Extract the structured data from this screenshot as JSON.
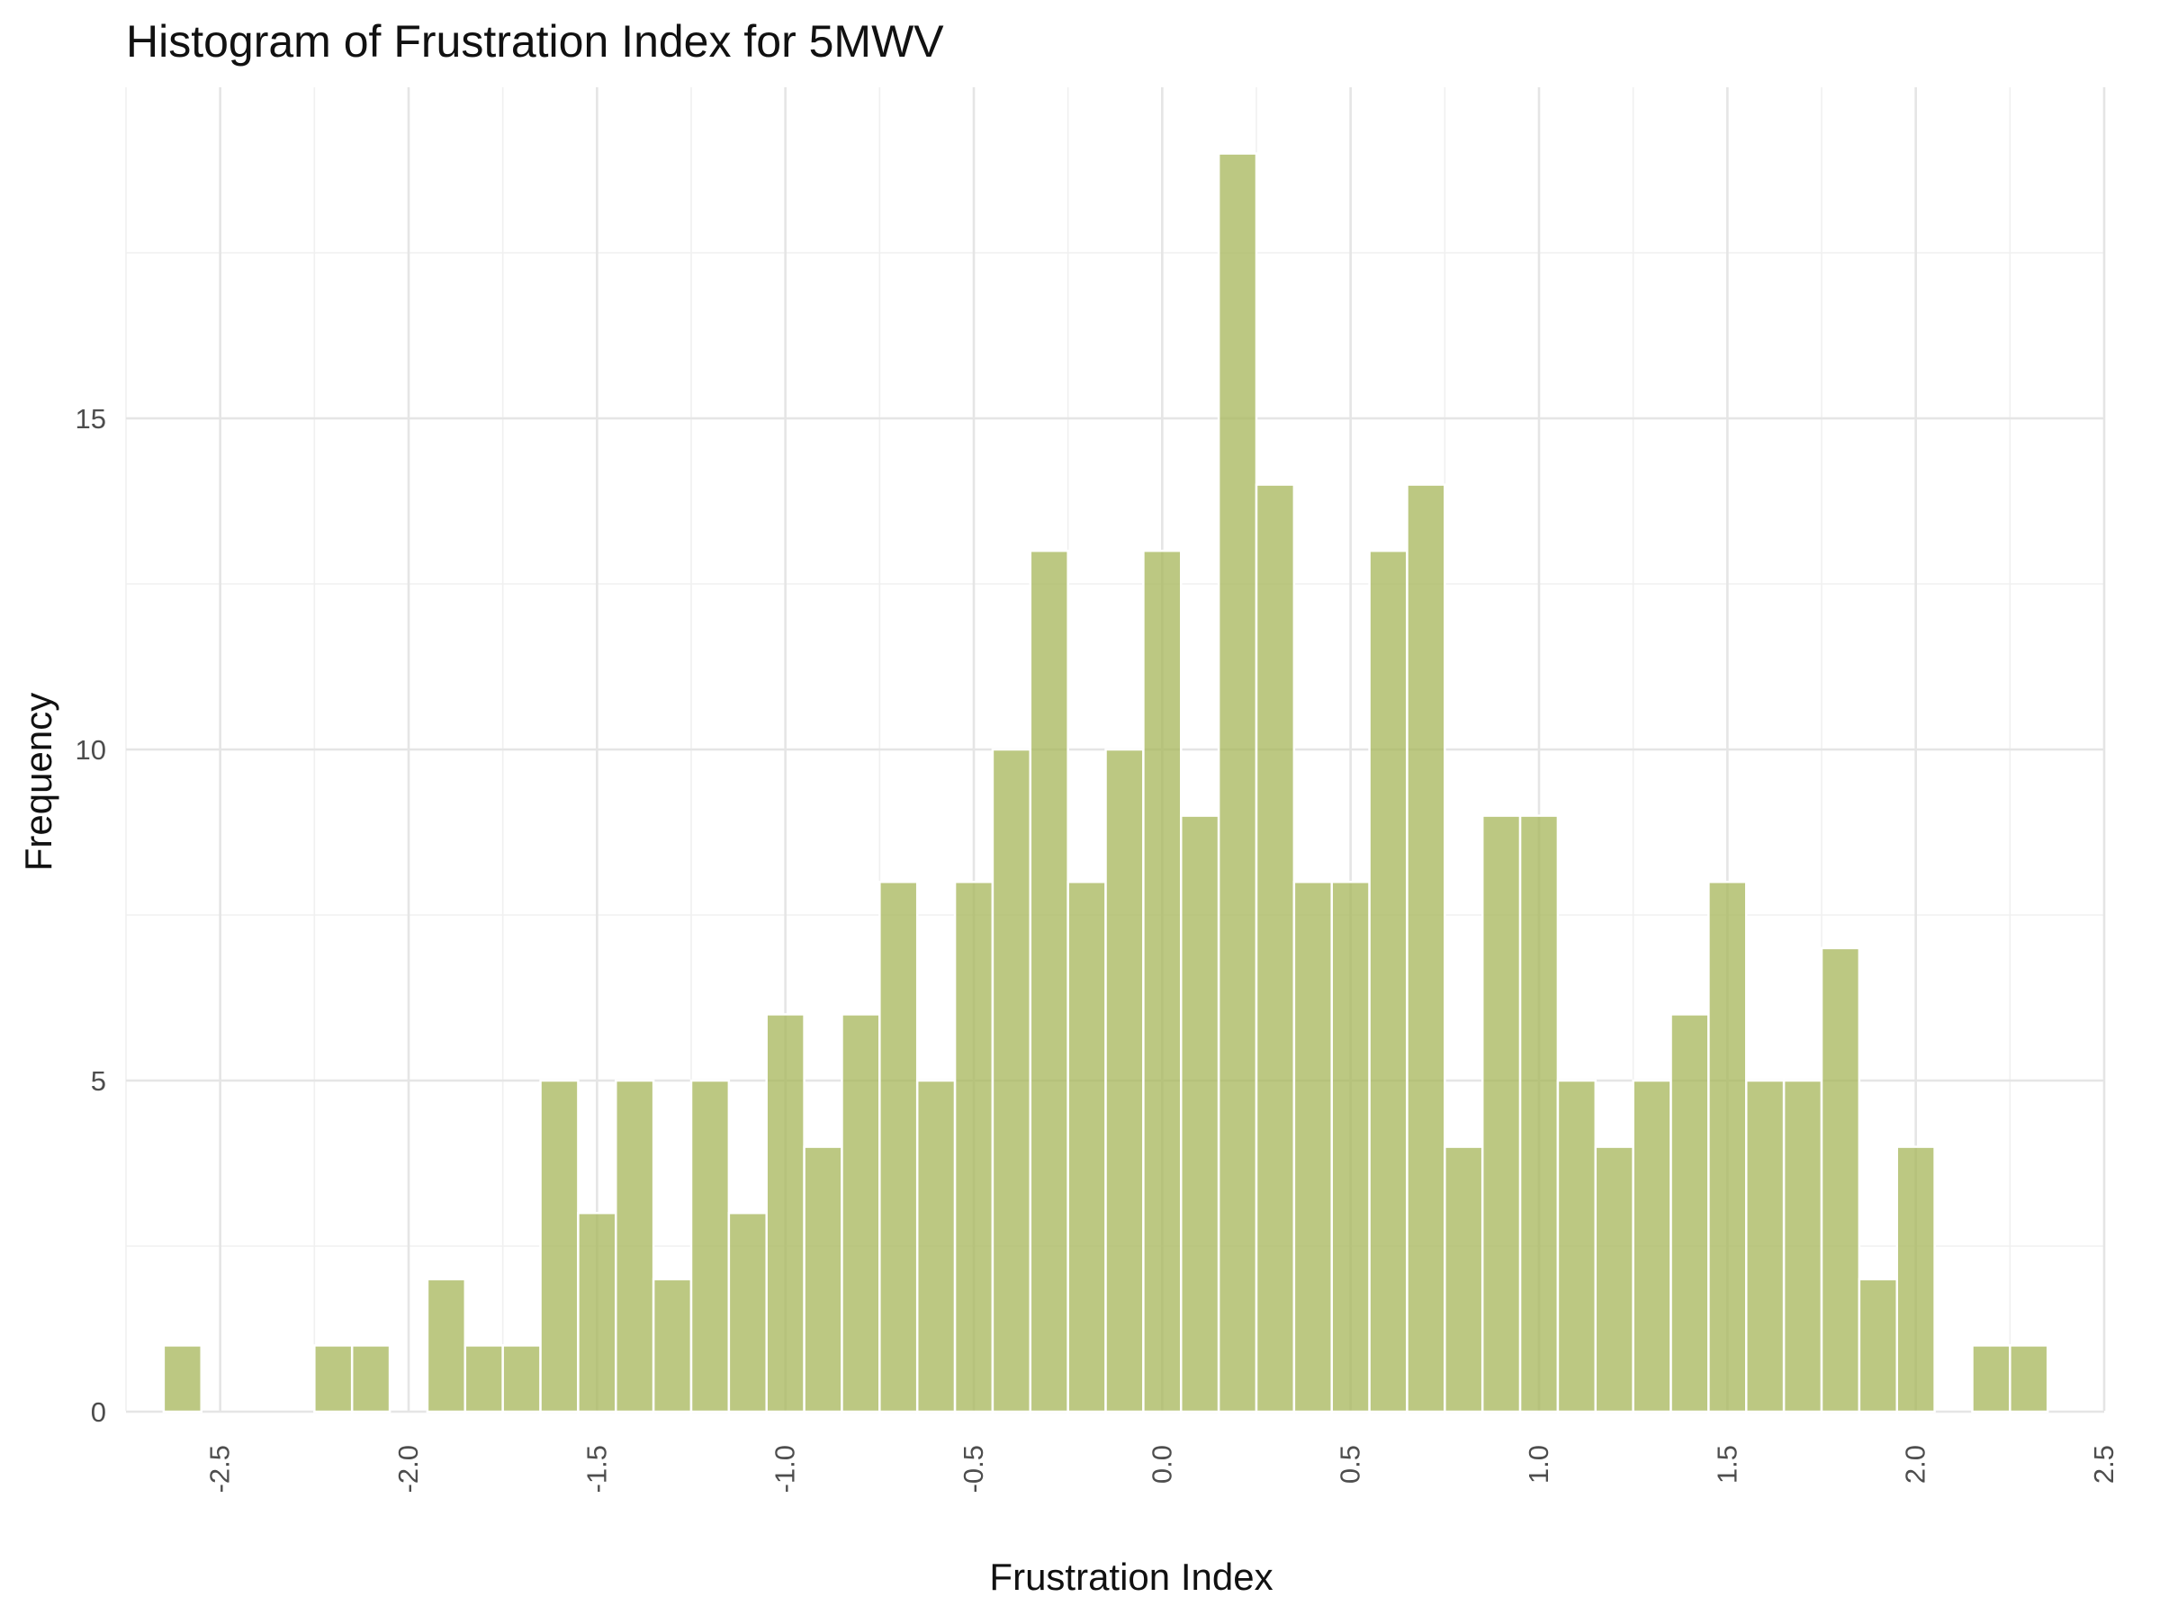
{
  "chart_data": {
    "type": "bar",
    "title": "Histogram of Frustration Index for 5MWV",
    "xlabel": "Frustration Index",
    "ylabel": "Frequency",
    "bar_color": "#a9b95f",
    "bar_outline": "#ffffff",
    "grid": true,
    "xlim": [
      -2.75,
      2.5
    ],
    "ylim": [
      0,
      19
    ],
    "x_ticks": [
      -2.5,
      -2.0,
      -1.5,
      -1.0,
      -0.5,
      0.0,
      0.5,
      1.0,
      1.5,
      2.0,
      2.5
    ],
    "x_tick_labels": [
      "-2.5",
      "-2.0",
      "-1.5",
      "-1.0",
      "-0.5",
      "0.0",
      "0.5",
      "1.0",
      "1.5",
      "2.0",
      "2.5"
    ],
    "y_ticks": [
      0,
      5,
      10,
      15
    ],
    "y_tick_labels": [
      "0",
      "5",
      "10",
      "15"
    ],
    "bins": [
      {
        "start": -2.65,
        "end": -2.55,
        "count": 1
      },
      {
        "start": -2.55,
        "end": -2.45,
        "count": 0
      },
      {
        "start": -2.45,
        "end": -2.35,
        "count": 0
      },
      {
        "start": -2.35,
        "end": -2.25,
        "count": 0
      },
      {
        "start": -2.25,
        "end": -2.15,
        "count": 1
      },
      {
        "start": -2.15,
        "end": -2.05,
        "count": 1
      },
      {
        "start": -2.05,
        "end": -1.95,
        "count": 0
      },
      {
        "start": -1.95,
        "end": -1.85,
        "count": 2
      },
      {
        "start": -1.85,
        "end": -1.75,
        "count": 1
      },
      {
        "start": -1.75,
        "end": -1.65,
        "count": 1
      },
      {
        "start": -1.65,
        "end": -1.55,
        "count": 5
      },
      {
        "start": -1.55,
        "end": -1.45,
        "count": 3
      },
      {
        "start": -1.45,
        "end": -1.35,
        "count": 5
      },
      {
        "start": -1.35,
        "end": -1.25,
        "count": 2
      },
      {
        "start": -1.25,
        "end": -1.15,
        "count": 5
      },
      {
        "start": -1.15,
        "end": -1.05,
        "count": 3
      },
      {
        "start": -1.05,
        "end": -0.95,
        "count": 6
      },
      {
        "start": -0.95,
        "end": -0.85,
        "count": 4
      },
      {
        "start": -0.85,
        "end": -0.75,
        "count": 6
      },
      {
        "start": -0.75,
        "end": -0.65,
        "count": 8
      },
      {
        "start": -0.65,
        "end": -0.55,
        "count": 5
      },
      {
        "start": -0.55,
        "end": -0.45,
        "count": 8
      },
      {
        "start": -0.45,
        "end": -0.35,
        "count": 10
      },
      {
        "start": -0.35,
        "end": -0.25,
        "count": 13
      },
      {
        "start": -0.25,
        "end": -0.15,
        "count": 8
      },
      {
        "start": -0.15,
        "end": -0.05,
        "count": 10
      },
      {
        "start": -0.05,
        "end": 0.05,
        "count": 13
      },
      {
        "start": 0.05,
        "end": 0.15,
        "count": 9
      },
      {
        "start": 0.15,
        "end": 0.25,
        "count": 19
      },
      {
        "start": 0.25,
        "end": 0.35,
        "count": 14
      },
      {
        "start": 0.35,
        "end": 0.45,
        "count": 8
      },
      {
        "start": 0.45,
        "end": 0.55,
        "count": 8
      },
      {
        "start": 0.55,
        "end": 0.65,
        "count": 13
      },
      {
        "start": 0.65,
        "end": 0.75,
        "count": 14
      },
      {
        "start": 0.75,
        "end": 0.85,
        "count": 4
      },
      {
        "start": 0.85,
        "end": 0.95,
        "count": 9
      },
      {
        "start": 0.95,
        "end": 1.05,
        "count": 9
      },
      {
        "start": 1.05,
        "end": 1.15,
        "count": 5
      },
      {
        "start": 1.15,
        "end": 1.25,
        "count": 4
      },
      {
        "start": 1.25,
        "end": 1.35,
        "count": 5
      },
      {
        "start": 1.35,
        "end": 1.45,
        "count": 6
      },
      {
        "start": 1.45,
        "end": 1.55,
        "count": 8
      },
      {
        "start": 1.55,
        "end": 1.65,
        "count": 5
      },
      {
        "start": 1.65,
        "end": 1.75,
        "count": 5
      },
      {
        "start": 1.75,
        "end": 1.85,
        "count": 7
      },
      {
        "start": 1.85,
        "end": 1.95,
        "count": 2
      },
      {
        "start": 1.95,
        "end": 2.05,
        "count": 4
      },
      {
        "start": 2.05,
        "end": 2.15,
        "count": 0
      },
      {
        "start": 2.15,
        "end": 2.25,
        "count": 1
      },
      {
        "start": 2.25,
        "end": 2.35,
        "count": 1
      }
    ]
  }
}
